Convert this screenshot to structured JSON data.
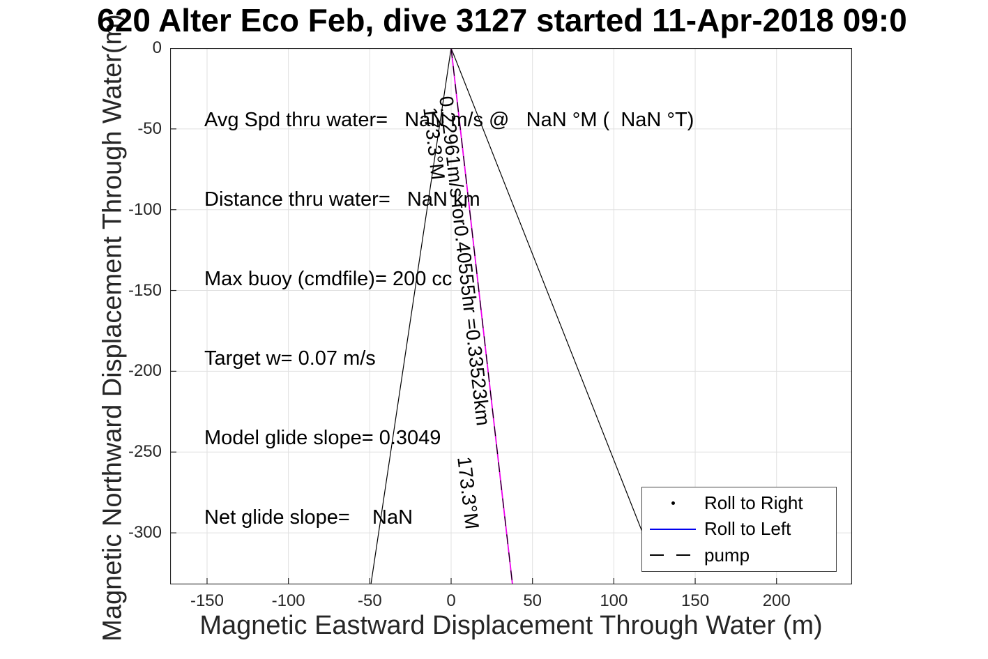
{
  "title": "620 Alter Eco Feb, dive 3127 started 11-Apr-2018 09:0",
  "chart_data": {
    "type": "line",
    "xlabel": "Magnetic Eastward Displacement Through Water (m)",
    "ylabel": "Magnetic Northward Displacement Through Water(m)",
    "xlim": [
      -172.7,
      246.4
    ],
    "ylim": [
      -331.9,
      0
    ],
    "xticks": [
      -150,
      -100,
      -50,
      0,
      50,
      100,
      150,
      200
    ],
    "yticks": [
      0,
      -50,
      -100,
      -150,
      -200,
      -250,
      -300
    ],
    "grid": true,
    "grid_color": "#e0e0e0",
    "axis_color": "#262626",
    "series": [
      {
        "name": "track-left-line",
        "color": "#000000",
        "style": "solid",
        "width": 1.2,
        "points": [
          [
            0,
            0
          ],
          [
            -49.3,
            -331.9
          ]
        ]
      },
      {
        "name": "track-right-line",
        "color": "#000000",
        "style": "solid",
        "width": 1.2,
        "points": [
          [
            0,
            0
          ],
          [
            117.5,
            -299.5
          ]
        ]
      },
      {
        "name": "desired-track-line",
        "color": "#ee00ee",
        "style": "solid",
        "width": 1.8,
        "points": [
          [
            0,
            0
          ],
          [
            37.7,
            -331.9
          ]
        ]
      },
      {
        "name": "pump-dashed-line",
        "color": "#000000",
        "style": "dashed",
        "width": 1.2,
        "points": [
          [
            0,
            0
          ],
          [
            37.7,
            -331.9
          ]
        ]
      }
    ],
    "legend": {
      "position": "southeast",
      "entries": [
        {
          "label": "Roll to Right",
          "marker": "dot",
          "color": "#000000"
        },
        {
          "label": "Roll to Left",
          "line": "solid",
          "color": "#0000ee"
        },
        {
          "label": "pump",
          "line": "dashed",
          "color": "#000000"
        }
      ]
    },
    "annotations": {
      "info_lines": [
        "Avg Spd thru water=   NaN m/s @   NaN °M (  NaN °T)",
        "Distance thru water=   NaN km",
        "Max buoy (cmdfile)= 200 cc",
        "Target w= 0.07 m/s",
        "Model glide slope= 0.3049",
        "Net glide slope=    NaN"
      ],
      "rotated_labels": [
        {
          "text": "0.22961m/s for0.40555hr =0.33523km",
          "x": 3.5,
          "y": -29,
          "rotation": 83.5
        },
        {
          "text": "173.3°M",
          "x": -6.5,
          "y": -36,
          "rotation": 83.5
        },
        {
          "text": "173.3°M",
          "x": 14.5,
          "y": -252,
          "rotation": 83.5
        }
      ]
    }
  }
}
